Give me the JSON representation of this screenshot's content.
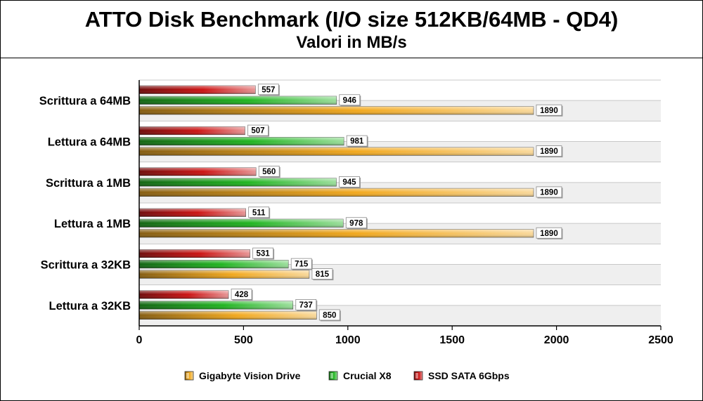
{
  "chart_data": {
    "type": "bar",
    "orientation": "horizontal",
    "title": "ATTO Disk Benchmark (I/O size 512KB/64MB - QD4)",
    "subtitle": "Valori in MB/s",
    "categories": [
      "Scrittura a 64MB",
      "Lettura a 64MB",
      "Scrittura a 1MB",
      "Lettura a 1MB",
      "Scrittura a 32KB",
      "Lettura a 32KB"
    ],
    "series": [
      {
        "name": "SSD SATA 6Gbps",
        "color": "#cc1111",
        "values": [
          557,
          507,
          560,
          511,
          531,
          428
        ]
      },
      {
        "name": "Crucial X8",
        "color": "#1fb51f",
        "values": [
          946,
          981,
          945,
          978,
          715,
          737
        ]
      },
      {
        "name": "Gigabyte Vision Drive",
        "color": "#f2a81c",
        "values": [
          1890,
          1890,
          1890,
          1890,
          815,
          850
        ]
      }
    ],
    "legend_order": [
      "Gigabyte Vision Drive",
      "Crucial X8",
      "SSD SATA 6Gbps"
    ],
    "xlim": [
      0,
      2500
    ],
    "xticks": [
      "0",
      "500",
      "1000",
      "1500",
      "2000",
      "2500"
    ],
    "legend_position": "bottom",
    "grid": true
  }
}
